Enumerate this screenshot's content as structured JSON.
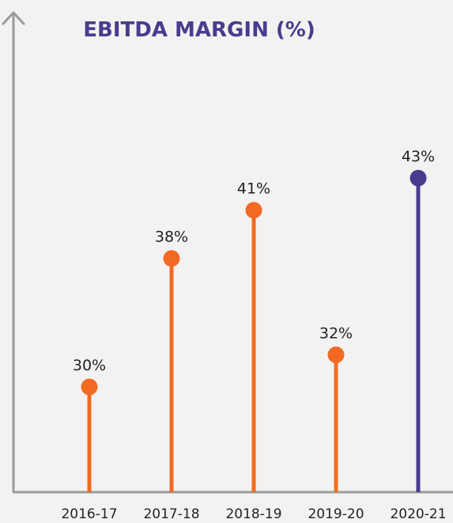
{
  "chart_data": {
    "type": "lollipop",
    "title": "EBITDA MARGIN (%)",
    "categories": [
      "2016-17",
      "2017-18",
      "2018-19",
      "2019-20",
      "2020-21"
    ],
    "values": [
      30,
      38,
      41,
      32,
      43
    ],
    "labels": [
      "30%",
      "38%",
      "41%",
      "32%",
      "43%"
    ],
    "unit": "%",
    "colors": {
      "default": "#f26a22",
      "highlight": "#4b3b8f",
      "title": "#4b3b8f",
      "axis": "#999999"
    },
    "highlight_index": 4,
    "grid": false,
    "legend": "none"
  }
}
